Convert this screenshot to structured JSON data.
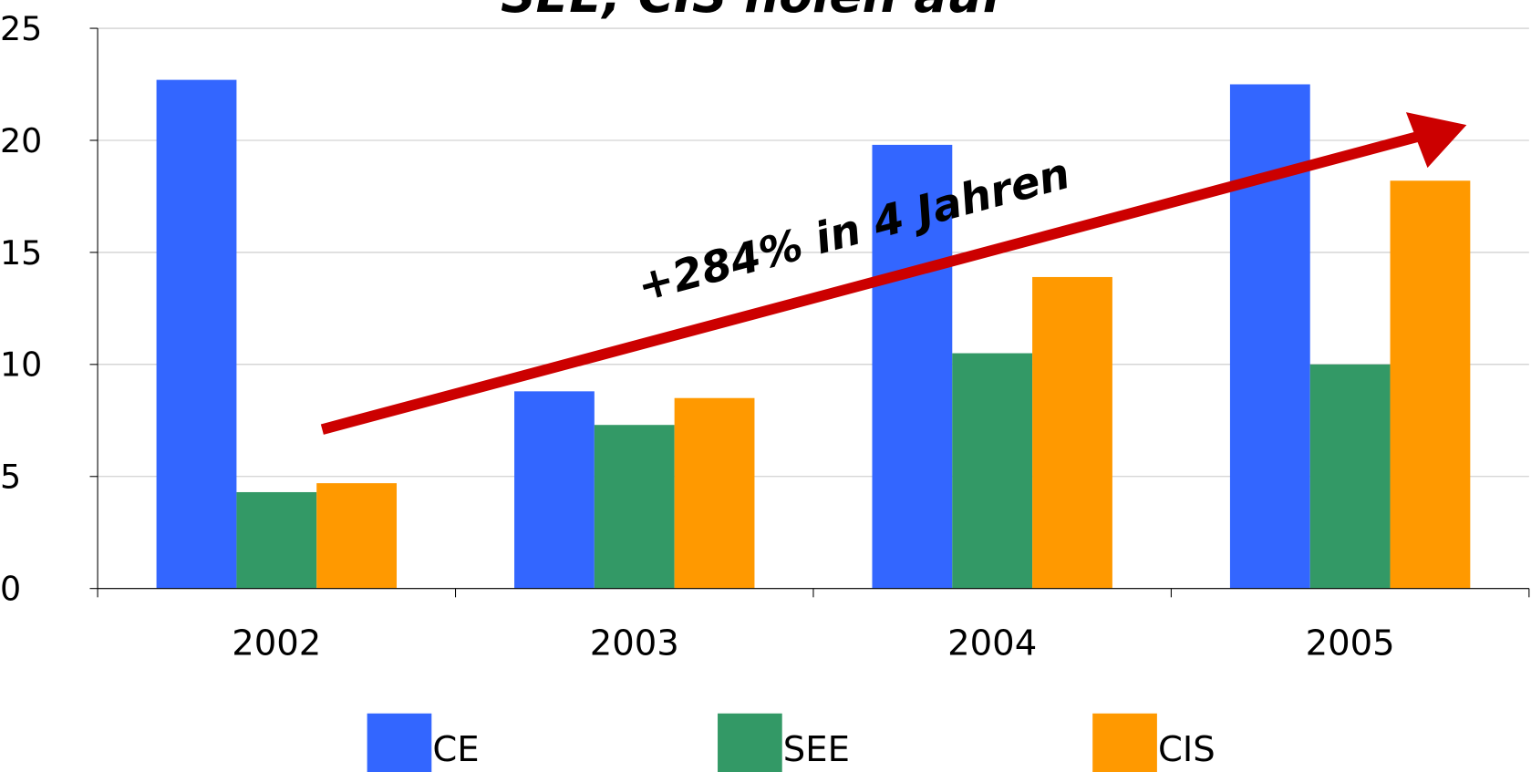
{
  "chart_data": {
    "type": "bar",
    "title": "SEE, CIS holen auf",
    "annotation": "+284%  in 4 Jahren",
    "categories": [
      "2002",
      "2003",
      "2004",
      "2005"
    ],
    "series": [
      {
        "name": "CE",
        "color": "#3366ff",
        "values": [
          22.7,
          8.8,
          19.8,
          22.5
        ]
      },
      {
        "name": "SEE",
        "color": "#339966",
        "values": [
          4.3,
          7.3,
          10.5,
          10.0
        ]
      },
      {
        "name": "CIS",
        "color": "#ff9900",
        "values": [
          4.7,
          8.5,
          13.9,
          18.2
        ]
      }
    ],
    "ylim": [
      0,
      25
    ],
    "yticks": [
      0,
      5,
      10,
      15,
      20,
      25
    ],
    "grid": true,
    "legend": "bottom"
  }
}
